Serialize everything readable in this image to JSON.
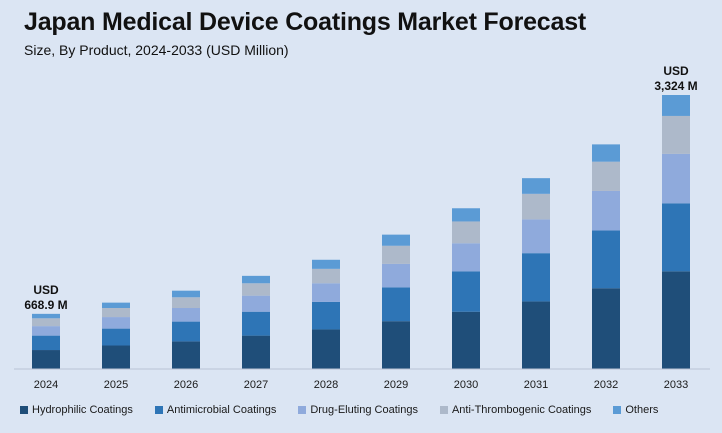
{
  "header": {
    "title": "Japan Medical Device Coatings Market Forecast",
    "subtitle": "Size, By Product, 2024-2033 (USD Million)"
  },
  "chart_data": {
    "type": "bar",
    "stacked": true,
    "title": "Japan Medical Device Coatings Market Forecast",
    "subtitle": "Size, By Product, 2024-2033 (USD Million)",
    "xlabel": "",
    "ylabel": "",
    "categories": [
      "2024",
      "2025",
      "2026",
      "2027",
      "2028",
      "2029",
      "2030",
      "2031",
      "2032",
      "2033"
    ],
    "totals": [
      668.9,
      805,
      950,
      1130,
      1325,
      1630,
      1950,
      2315,
      2725,
      3324
    ],
    "series": [
      {
        "name": "Hydrophilic Coatings",
        "color": "#1f4e79",
        "values": [
          230,
          285,
          335,
          405,
          480,
          580,
          695,
          820,
          980,
          1185
        ]
      },
      {
        "name": "Antimicrobial Coatings",
        "color": "#2e75b6",
        "values": [
          175,
          205,
          240,
          290,
          335,
          410,
          490,
          585,
          700,
          825
        ]
      },
      {
        "name": "Drug-Eluting Coatings",
        "color": "#8faadc",
        "values": [
          115,
          140,
          165,
          195,
          225,
          285,
          340,
          410,
          480,
          600
        ]
      },
      {
        "name": "Anti-Thrombogenic Coatings",
        "color": "#adb9ca",
        "values": [
          95,
          110,
          130,
          150,
          175,
          220,
          265,
          310,
          355,
          460
        ]
      },
      {
        "name": "Others",
        "color": "#5b9bd5",
        "values": [
          53.9,
          65,
          80,
          90,
          110,
          135,
          160,
          190,
          210,
          254
        ]
      }
    ],
    "annotations": [
      {
        "category": "2024",
        "line1": "USD",
        "line2": "668.9 M"
      },
      {
        "category": "2033",
        "line1": "USD",
        "line2": "3,324 M"
      }
    ],
    "ylim": [
      0,
      3400
    ],
    "grid": false,
    "legend": "bottom"
  }
}
